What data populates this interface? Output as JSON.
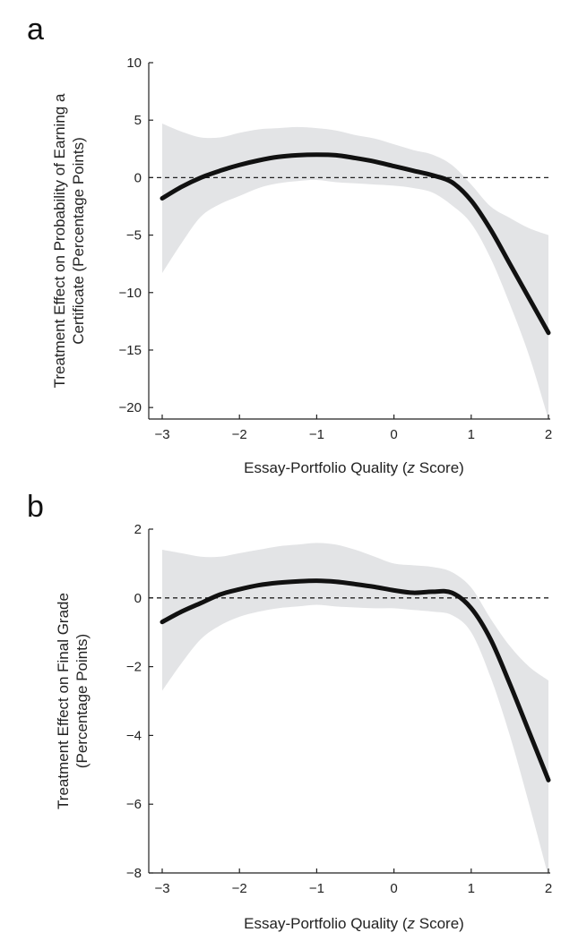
{
  "chart_data": [
    {
      "panel_label": "a",
      "type": "line",
      "xlabel_pre": "Essay-Portfolio Quality (",
      "xlabel_italic": "z",
      "xlabel_post": " Score)",
      "ylabel_lines": [
        "Treatment Effect on Probability of Earning a",
        "Certificate (Percentage Points)"
      ],
      "xlim": [
        -3,
        2
      ],
      "ylim": [
        -21,
        10
      ],
      "xticks": [
        -3,
        -2,
        -1,
        0,
        1,
        2
      ],
      "xtick_labels": [
        "−3",
        "−2",
        "−1",
        "0",
        "1",
        "2"
      ],
      "yticks": [
        10,
        5,
        0,
        -5,
        -10,
        -15,
        -20
      ],
      "ytick_labels": [
        "10",
        "5",
        "0",
        "−5",
        "−10",
        "−15",
        "−20"
      ],
      "reference_line": 0,
      "x": [
        -3,
        -2.75,
        -2.5,
        -2.25,
        -2,
        -1.75,
        -1.5,
        -1.25,
        -1,
        -0.75,
        -0.5,
        -0.25,
        0,
        0.25,
        0.5,
        0.75,
        1,
        1.25,
        1.5,
        1.75,
        2
      ],
      "estimate": [
        -1.8,
        -0.8,
        0.0,
        0.6,
        1.1,
        1.5,
        1.8,
        1.95,
        2.0,
        1.95,
        1.7,
        1.4,
        1.0,
        0.6,
        0.2,
        -0.4,
        -2.0,
        -4.5,
        -7.5,
        -10.5,
        -13.5
      ],
      "ci_upper": [
        4.7,
        4.0,
        3.5,
        3.5,
        3.9,
        4.2,
        4.3,
        4.4,
        4.3,
        4.1,
        3.7,
        3.4,
        2.9,
        2.4,
        2.0,
        1.1,
        -0.6,
        -2.5,
        -3.5,
        -4.4,
        -5.0
      ],
      "ci_lower": [
        -8.3,
        -5.7,
        -3.4,
        -2.3,
        -1.6,
        -0.9,
        -0.5,
        -0.3,
        -0.2,
        -0.4,
        -0.5,
        -0.6,
        -0.7,
        -0.9,
        -1.3,
        -2.4,
        -4.0,
        -7.0,
        -11.0,
        -15.5,
        -21.0
      ]
    },
    {
      "panel_label": "b",
      "type": "line",
      "xlabel_pre": "Essay-Portfolio Quality (",
      "xlabel_italic": "z",
      "xlabel_post": " Score)",
      "ylabel_lines": [
        "Treatment Effect on Final Grade",
        "(Percentage Points)"
      ],
      "xlim": [
        -3,
        2
      ],
      "ylim": [
        -8,
        2
      ],
      "xticks": [
        -3,
        -2,
        -1,
        0,
        1,
        2
      ],
      "xtick_labels": [
        "−3",
        "−2",
        "−1",
        "0",
        "1",
        "2"
      ],
      "yticks": [
        2,
        0,
        -2,
        -4,
        -6,
        -8
      ],
      "ytick_labels": [
        "2",
        "0",
        "−2",
        "−4",
        "−6",
        "−8"
      ],
      "reference_line": 0,
      "x": [
        -3,
        -2.75,
        -2.5,
        -2.25,
        -2,
        -1.75,
        -1.5,
        -1.25,
        -1,
        -0.75,
        -0.5,
        -0.25,
        0,
        0.25,
        0.5,
        0.75,
        1,
        1.25,
        1.5,
        1.75,
        2
      ],
      "estimate": [
        -0.7,
        -0.4,
        -0.15,
        0.1,
        0.25,
        0.37,
        0.44,
        0.48,
        0.5,
        0.47,
        0.4,
        0.32,
        0.22,
        0.15,
        0.18,
        0.15,
        -0.3,
        -1.2,
        -2.5,
        -3.9,
        -5.3
      ],
      "ci_upper": [
        1.4,
        1.3,
        1.2,
        1.2,
        1.3,
        1.4,
        1.5,
        1.55,
        1.6,
        1.55,
        1.4,
        1.2,
        1.0,
        0.95,
        0.9,
        0.75,
        0.3,
        -0.6,
        -1.4,
        -2.0,
        -2.4
      ],
      "ci_lower": [
        -2.7,
        -1.9,
        -1.2,
        -0.8,
        -0.55,
        -0.4,
        -0.3,
        -0.25,
        -0.2,
        -0.25,
        -0.28,
        -0.3,
        -0.3,
        -0.35,
        -0.4,
        -0.5,
        -1.0,
        -2.3,
        -4.0,
        -6.0,
        -8.1
      ]
    }
  ]
}
